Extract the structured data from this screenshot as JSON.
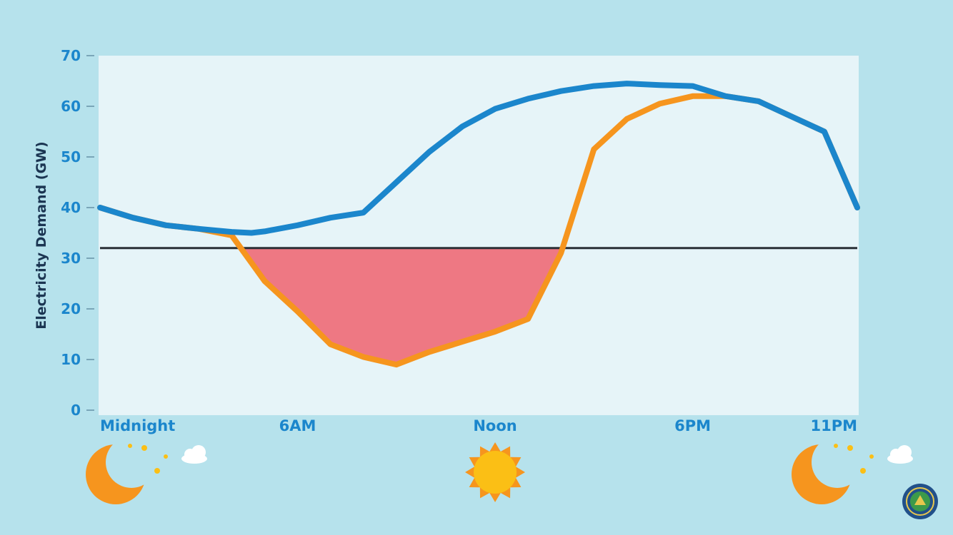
{
  "chart_data": {
    "type": "line",
    "ylabel": "Electricity Demand (GW)",
    "xlabel": "",
    "ylim": [
      0,
      70
    ],
    "yticks": [
      0,
      10,
      20,
      30,
      40,
      50,
      60,
      70
    ],
    "xlim": [
      0,
      23
    ],
    "xticks": [
      {
        "hour": 0,
        "label": "Midnight"
      },
      {
        "hour": 6,
        "label": "6AM"
      },
      {
        "hour": 12,
        "label": "Noon"
      },
      {
        "hour": 18,
        "label": "6PM"
      },
      {
        "hour": 23,
        "label": "11PM"
      }
    ],
    "series": [
      {
        "color": "#1b86cc",
        "x": [
          0,
          1,
          2,
          3,
          4,
          4.6,
          5,
          6,
          7,
          8,
          8.5,
          9,
          10,
          11,
          12,
          13,
          14,
          15,
          16,
          17,
          18,
          19,
          20,
          21,
          22,
          23
        ],
        "values": [
          40,
          38,
          36.5,
          35.8,
          35.2,
          35,
          35.3,
          36.5,
          38,
          39,
          42,
          45,
          51,
          56,
          59.5,
          61.5,
          63,
          64,
          64.5,
          64.2,
          64,
          62,
          61,
          58,
          55,
          40
        ]
      },
      {
        "color": "#f6951e",
        "x": [
          0,
          1,
          2,
          3,
          4,
          5,
          6,
          7,
          8,
          9,
          10,
          11,
          12,
          13,
          14,
          15,
          16,
          17,
          18,
          19,
          20,
          21,
          22,
          23
        ],
        "values": [
          40,
          38,
          36.5,
          35.8,
          34.5,
          25.5,
          19.5,
          13,
          10.5,
          9,
          11.5,
          13.5,
          15.5,
          18,
          31,
          51.5,
          57.5,
          60.5,
          62,
          62,
          61,
          58,
          55,
          40
        ]
      }
    ],
    "reference_line": {
      "value": 32,
      "color": "#2a2f36"
    },
    "shaded_area": {
      "color": "#ee7883"
    },
    "annotations": [
      {
        "hour": 0,
        "icon": "moon-icon"
      },
      {
        "hour": 12,
        "icon": "sun-icon"
      },
      {
        "hour": 23,
        "icon": "moon-icon"
      }
    ],
    "grid": false,
    "legend": "none"
  },
  "colors": {
    "background": "#b6e2ec",
    "plot_area": "#e6f4f8",
    "tick_text": "#1b86cc",
    "ylabel_text": "#1b3552",
    "moon": "#f6951e",
    "sun": "#fbbf15"
  }
}
